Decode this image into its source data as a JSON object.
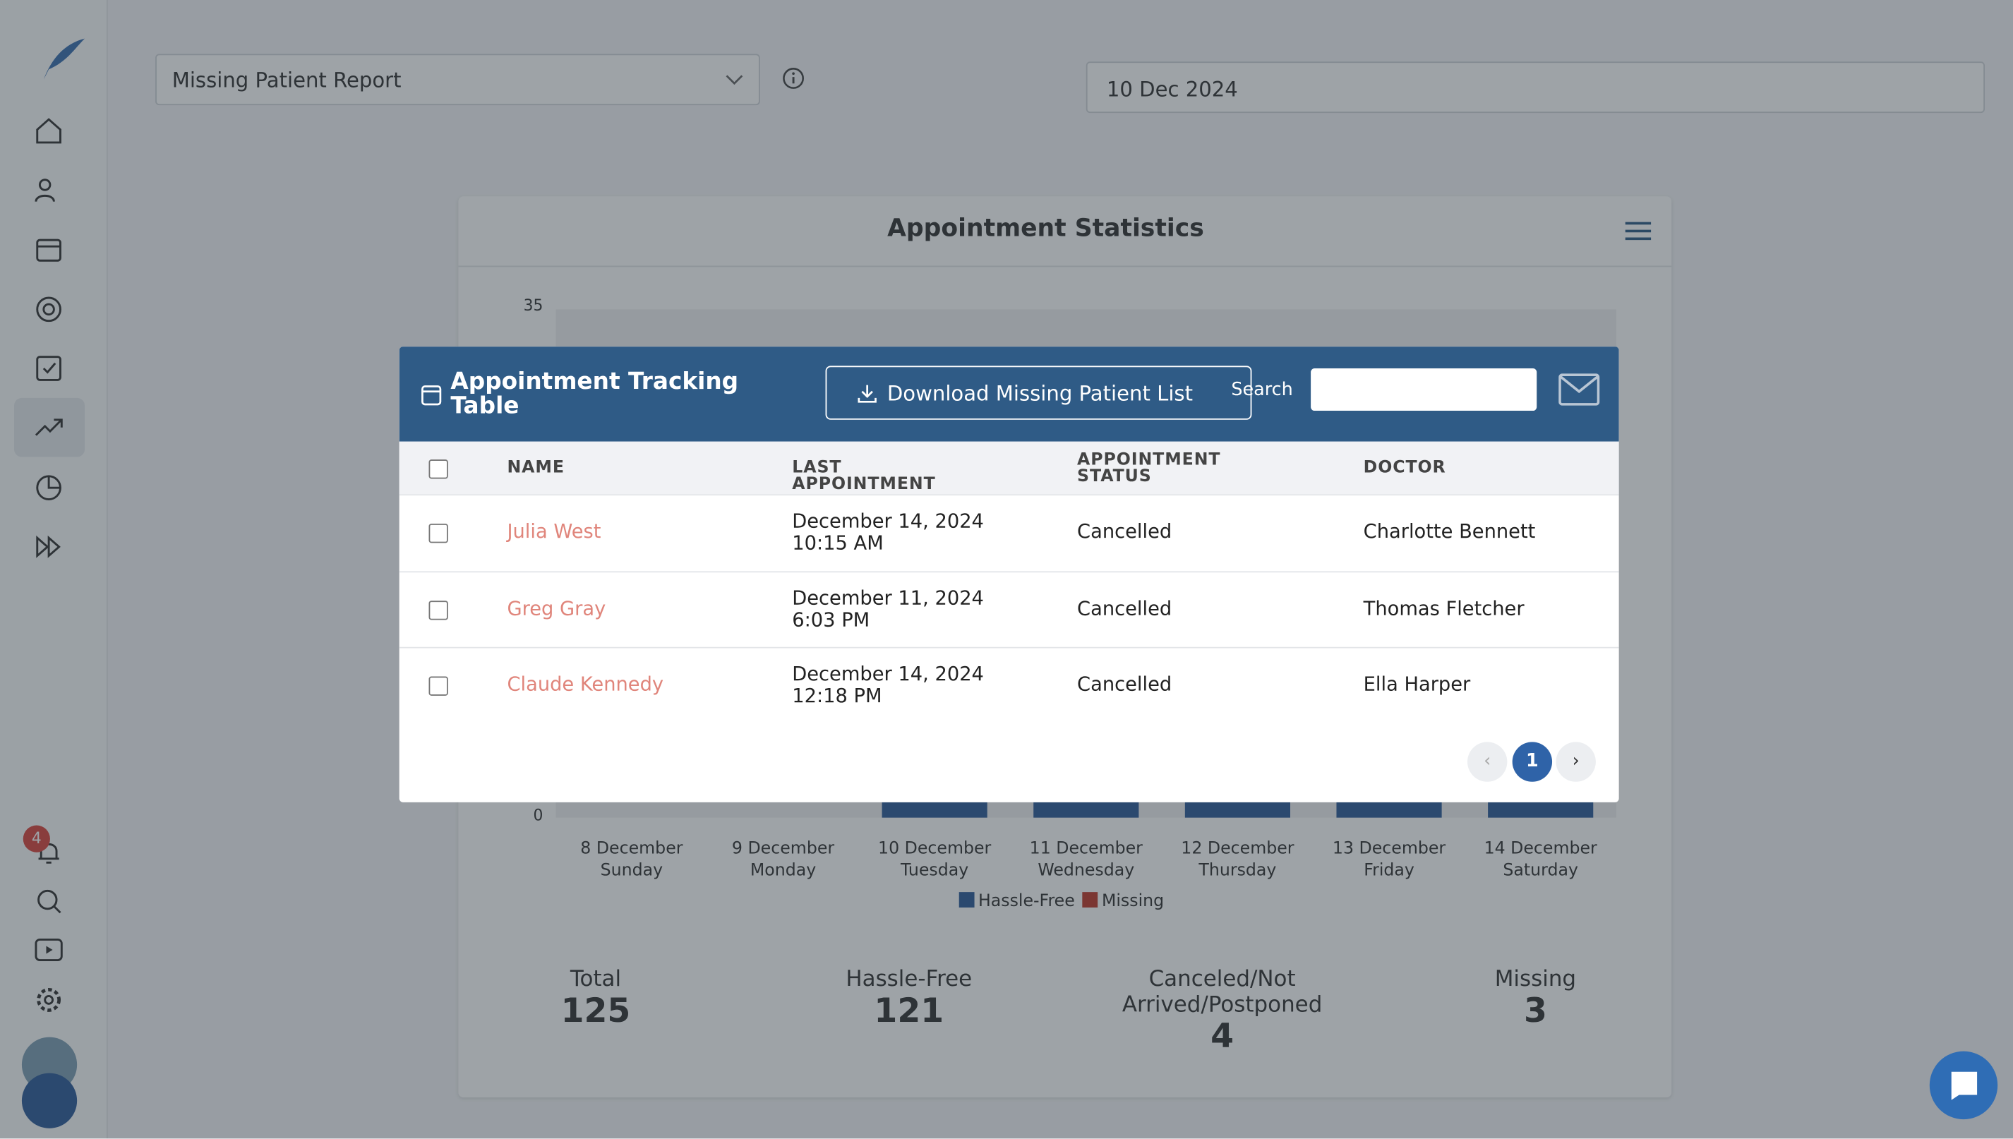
{
  "sidebar": {
    "notification_count": 4
  },
  "toolbar": {
    "report_select": "Missing Patient Report",
    "date": "10 Dec 2024"
  },
  "stats_card": {
    "title": "Appointment Statistics",
    "y_axis_labels": [
      "35",
      "0"
    ],
    "x_labels": [
      {
        "date": "8 December",
        "day": "Sunday"
      },
      {
        "date": "9 December",
        "day": "Monday"
      },
      {
        "date": "10 December",
        "day": "Tuesday"
      },
      {
        "date": "11 December",
        "day": "Wednesday"
      },
      {
        "date": "12 December",
        "day": "Thursday"
      },
      {
        "date": "13 December",
        "day": "Friday"
      },
      {
        "date": "14 December",
        "day": "Saturday"
      }
    ],
    "legend": [
      "Hassle-Free",
      "Missing"
    ],
    "totals": [
      {
        "label": "Total",
        "value": 125
      },
      {
        "label": "Hassle-Free",
        "value": 121
      },
      {
        "label": "Canceled/Not Arrived/Postponed",
        "value": 4
      },
      {
        "label": "Missing",
        "value": 3
      }
    ]
  },
  "modal": {
    "title": "Appointment Tracking Table",
    "download_button": "Download Missing Patient List",
    "search_label": "Search",
    "columns": [
      "NAME",
      "LAST APPOINTMENT",
      "APPOINTMENT STATUS",
      "DOCTOR"
    ],
    "rows": [
      [
        "Julia West",
        "December 14, 2024 10:15 AM",
        "Cancelled",
        "Charlotte Bennett"
      ],
      [
        "Greg Gray",
        "December 11, 2024 6:03 PM",
        "Cancelled",
        "Thomas Fletcher"
      ],
      [
        "Claude Kennedy",
        "December 14, 2024 12:18 PM",
        "Cancelled",
        "Ella Harper"
      ]
    ],
    "pagination": {
      "current_page": 1
    }
  }
}
